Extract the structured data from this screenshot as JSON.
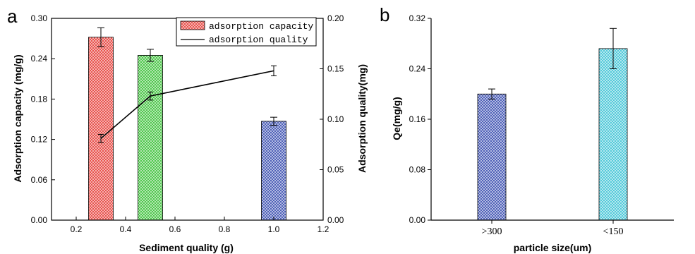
{
  "panel_a": {
    "letter": "a",
    "chart_data": {
      "type": "bar",
      "xlabel": "Sediment quality (g)",
      "ylabel": "Adsorption capacity (mg/g)",
      "y2label": "Adsorption quality(mg)",
      "xlim": [
        0.1,
        1.2
      ],
      "ylim": [
        0,
        0.3
      ],
      "y2lim": [
        0,
        0.2
      ],
      "xticks": [
        "0.2",
        "0.4",
        "0.6",
        "0.8",
        "1.0",
        "1.2"
      ],
      "yticks": [
        "0.00",
        "0.06",
        "0.12",
        "0.18",
        "0.24",
        "0.30"
      ],
      "y2ticks": [
        "0.00",
        "0.05",
        "0.10",
        "0.15",
        "0.20"
      ],
      "bar_width": 0.1,
      "bars": [
        {
          "x": 0.3,
          "value": 0.272,
          "error": 0.014,
          "color": "#e8403a"
        },
        {
          "x": 0.5,
          "value": 0.245,
          "error": 0.009,
          "color": "#3cc23a"
        },
        {
          "x": 1.0,
          "value": 0.147,
          "error": 0.006,
          "color": "#3a4fb0"
        }
      ],
      "line": {
        "x": [
          0.3,
          0.5,
          1.0
        ],
        "y": [
          0.081,
          0.123,
          0.148
        ],
        "error": [
          0.004,
          0.004,
          0.005
        ]
      },
      "legend": [
        "adsorption capacity",
        "adsorption quality"
      ],
      "legend_position": "top-right"
    }
  },
  "panel_b": {
    "letter": "b",
    "chart_data": {
      "type": "bar",
      "xlabel": "particle size(um)",
      "ylabel": "Qe(mg/g)",
      "ylim": [
        0,
        0.32
      ],
      "yticks": [
        "0.00",
        "0.08",
        "0.16",
        "0.24",
        "0.32"
      ],
      "categories": [
        ">300",
        "<150"
      ],
      "values": [
        0.2,
        0.272
      ],
      "errors": [
        0.008,
        0.032
      ],
      "colors": [
        "#3a4fb0",
        "#3fc4d6"
      ]
    }
  }
}
